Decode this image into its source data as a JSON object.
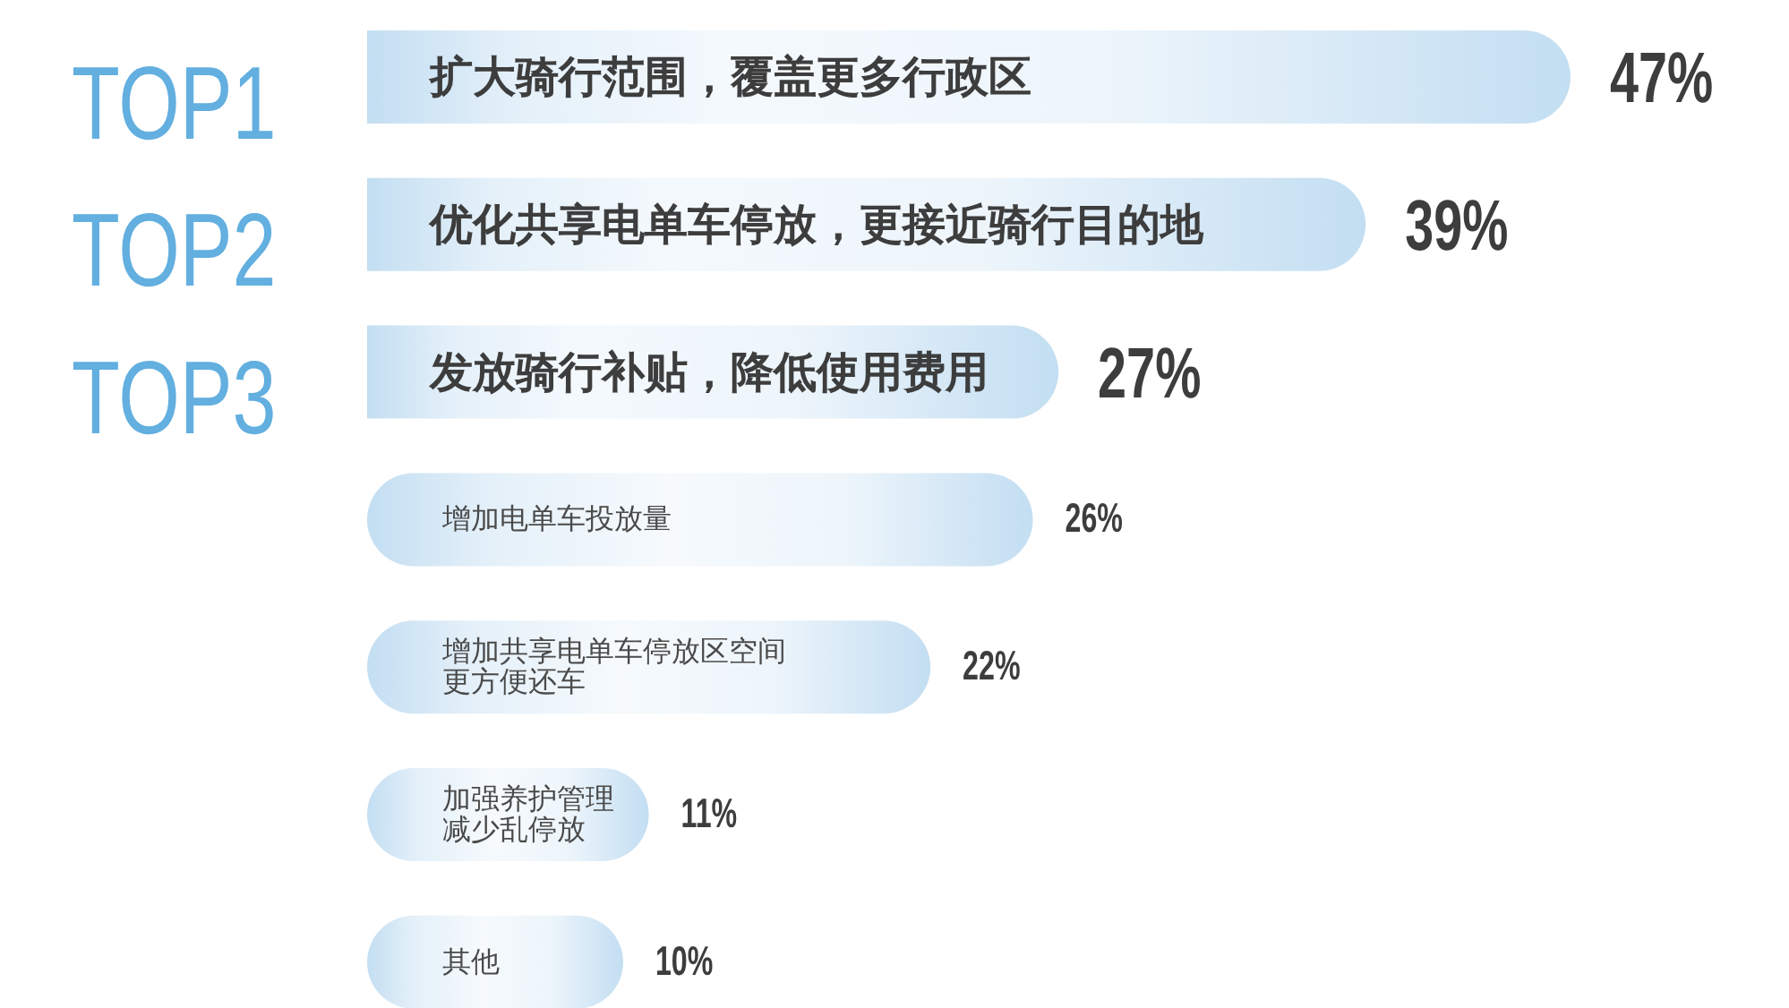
{
  "chart_data": {
    "type": "bar",
    "orientation": "horizontal",
    "categories": [
      "扩大骑行范围，覆盖更多行政区",
      "优化共享电单车停放，更接近骑行目的地",
      "发放骑行补贴，降低使用费用",
      "增加电单车投放量",
      "增加共享电单车停放区空间更方便还车",
      "加强养护管理减少乱停放",
      "其他"
    ],
    "values": [
      47,
      39,
      27,
      26,
      22,
      11,
      10
    ],
    "value_labels": [
      "47%",
      "39%",
      "27%",
      "26%",
      "22%",
      "11%",
      "10%"
    ],
    "color": "#c3def2",
    "annotations": [
      "TOP1",
      "TOP2",
      "TOP3"
    ]
  }
}
